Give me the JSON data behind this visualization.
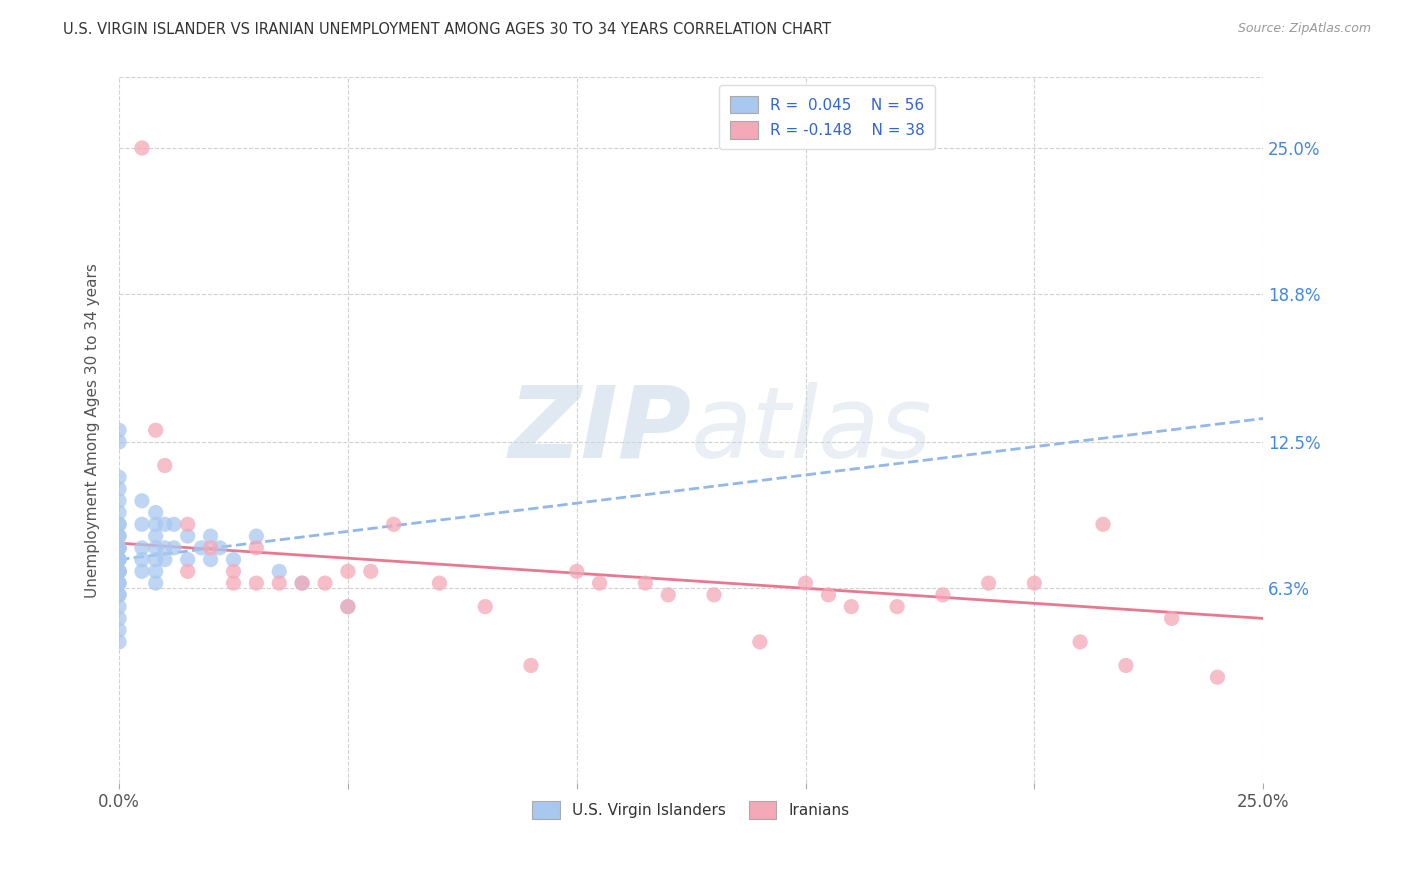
{
  "title": "U.S. VIRGIN ISLANDER VS IRANIAN UNEMPLOYMENT AMONG AGES 30 TO 34 YEARS CORRELATION CHART",
  "source": "Source: ZipAtlas.com",
  "ylabel": "Unemployment Among Ages 30 to 34 years",
  "ytick_labels": [
    "25.0%",
    "18.8%",
    "12.5%",
    "6.3%"
  ],
  "ytick_values": [
    0.25,
    0.188,
    0.125,
    0.063
  ],
  "xlim": [
    0.0,
    0.25
  ],
  "ylim": [
    -0.02,
    0.28
  ],
  "color_blue": "#a8c8f0",
  "color_pink": "#f4a8b8",
  "line_blue": "#90b8e8",
  "line_pink": "#e87890",
  "watermark_zip": "ZIP",
  "watermark_atlas": "atlas",
  "background_color": "#ffffff",
  "grid_color": "#cccccc",
  "blue_scatter_x": [
    0.0,
    0.0,
    0.0,
    0.0,
    0.0,
    0.0,
    0.0,
    0.0,
    0.0,
    0.0,
    0.0,
    0.0,
    0.0,
    0.0,
    0.0,
    0.0,
    0.0,
    0.0,
    0.0,
    0.0,
    0.0,
    0.0,
    0.0,
    0.0,
    0.0,
    0.0,
    0.0,
    0.0,
    0.005,
    0.005,
    0.005,
    0.005,
    0.005,
    0.008,
    0.008,
    0.008,
    0.008,
    0.008,
    0.008,
    0.008,
    0.01,
    0.01,
    0.01,
    0.012,
    0.012,
    0.015,
    0.015,
    0.018,
    0.02,
    0.02,
    0.022,
    0.025,
    0.03,
    0.035,
    0.04,
    0.05
  ],
  "blue_scatter_y": [
    0.04,
    0.045,
    0.05,
    0.055,
    0.06,
    0.06,
    0.065,
    0.065,
    0.07,
    0.07,
    0.07,
    0.07,
    0.075,
    0.075,
    0.075,
    0.08,
    0.08,
    0.08,
    0.085,
    0.085,
    0.09,
    0.09,
    0.095,
    0.1,
    0.105,
    0.11,
    0.125,
    0.13,
    0.07,
    0.075,
    0.08,
    0.09,
    0.1,
    0.065,
    0.07,
    0.075,
    0.08,
    0.085,
    0.09,
    0.095,
    0.075,
    0.08,
    0.09,
    0.08,
    0.09,
    0.075,
    0.085,
    0.08,
    0.075,
    0.085,
    0.08,
    0.075,
    0.085,
    0.07,
    0.065,
    0.055
  ],
  "pink_scatter_x": [
    0.005,
    0.008,
    0.01,
    0.015,
    0.015,
    0.02,
    0.025,
    0.025,
    0.03,
    0.03,
    0.035,
    0.04,
    0.045,
    0.05,
    0.05,
    0.055,
    0.06,
    0.07,
    0.08,
    0.09,
    0.1,
    0.105,
    0.115,
    0.12,
    0.13,
    0.14,
    0.15,
    0.155,
    0.16,
    0.17,
    0.18,
    0.19,
    0.2,
    0.21,
    0.215,
    0.22,
    0.23,
    0.24
  ],
  "pink_scatter_y": [
    0.25,
    0.13,
    0.115,
    0.09,
    0.07,
    0.08,
    0.065,
    0.07,
    0.08,
    0.065,
    0.065,
    0.065,
    0.065,
    0.07,
    0.055,
    0.07,
    0.09,
    0.065,
    0.055,
    0.03,
    0.07,
    0.065,
    0.065,
    0.06,
    0.06,
    0.04,
    0.065,
    0.06,
    0.055,
    0.055,
    0.06,
    0.065,
    0.065,
    0.04,
    0.09,
    0.03,
    0.05,
    0.025
  ],
  "blue_trend_x0": 0.0,
  "blue_trend_x1": 0.25,
  "blue_trend_y0": 0.075,
  "blue_trend_y1": 0.135,
  "pink_trend_x0": 0.0,
  "pink_trend_x1": 0.25,
  "pink_trend_y0": 0.082,
  "pink_trend_y1": 0.05
}
